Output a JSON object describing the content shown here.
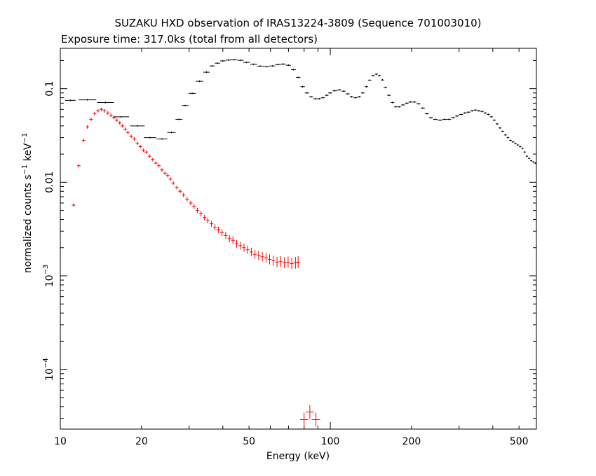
{
  "chart_data": {
    "type": "scatter",
    "title": "SUZAKU HXD observation of IRAS13224-3809 (Sequence 701003010)",
    "subtitle": "Exposure time: 317.0ks (total from all detectors)",
    "xlabel": "Energy (keV)",
    "ylabel_main": "normalized counts s",
    "ylabel_mid": " keV",
    "ylabel_exp": "−1",
    "xscale": "log",
    "yscale": "log",
    "xlim": [
      10,
      580
    ],
    "ylim": [
      2.3e-05,
      0.27
    ],
    "x_ticks": [
      {
        "value": 10,
        "label": "10"
      },
      {
        "value": 20,
        "label": "20"
      },
      {
        "value": 50,
        "label": "50"
      },
      {
        "value": 100,
        "label": "100"
      },
      {
        "value": 200,
        "label": "200"
      },
      {
        "value": 500,
        "label": "500"
      }
    ],
    "y_ticks": [
      {
        "value": 0.0001,
        "base": "10",
        "exp": "−4"
      },
      {
        "value": 0.001,
        "base": "10",
        "exp": "−3"
      },
      {
        "value": 0.01,
        "label": "0.01"
      },
      {
        "value": 0.1,
        "label": "0.1"
      }
    ],
    "series": [
      {
        "color": "#000000",
        "style": "binned",
        "points": [
          [
            10.9,
            0.075
          ],
          [
            12.6,
            0.076
          ],
          [
            14.7,
            0.071
          ],
          [
            16.8,
            0.05
          ],
          [
            19.3,
            0.04
          ],
          [
            21.5,
            0.03
          ],
          [
            23.8,
            0.029
          ],
          [
            25.8,
            0.034
          ],
          [
            27.5,
            0.047
          ],
          [
            29.0,
            0.066
          ],
          [
            30.8,
            0.089
          ],
          [
            32.8,
            0.12
          ],
          [
            34.8,
            0.15
          ],
          [
            36.5,
            0.175
          ],
          [
            38.2,
            0.187
          ],
          [
            40.0,
            0.198
          ],
          [
            42.0,
            0.202
          ],
          [
            44.0,
            0.204
          ],
          [
            46.5,
            0.201
          ],
          [
            49.0,
            0.191
          ],
          [
            52.0,
            0.182
          ],
          [
            55.0,
            0.174
          ],
          [
            58.0,
            0.172
          ],
          [
            61.0,
            0.175
          ],
          [
            64.0,
            0.181
          ],
          [
            67.0,
            0.183
          ],
          [
            70.0,
            0.178
          ],
          [
            73.0,
            0.16
          ],
          [
            76.0,
            0.132
          ],
          [
            79.0,
            0.105
          ],
          [
            82.0,
            0.09
          ],
          [
            85.0,
            0.082
          ],
          [
            88.0,
            0.078
          ],
          [
            91.0,
            0.078
          ],
          [
            94.0,
            0.08
          ],
          [
            97.0,
            0.085
          ],
          [
            100,
            0.09
          ],
          [
            104,
            0.095
          ],
          [
            108,
            0.097
          ],
          [
            112,
            0.094
          ],
          [
            116,
            0.088
          ],
          [
            120,
            0.082
          ],
          [
            124,
            0.08
          ],
          [
            128,
            0.082
          ],
          [
            132,
            0.09
          ],
          [
            136,
            0.105
          ],
          [
            140,
            0.123
          ],
          [
            144,
            0.138
          ],
          [
            148,
            0.143
          ],
          [
            152,
            0.138
          ],
          [
            156,
            0.124
          ],
          [
            160,
            0.103
          ],
          [
            165,
            0.085
          ],
          [
            170,
            0.071
          ],
          [
            175,
            0.064
          ],
          [
            180,
            0.064
          ],
          [
            186,
            0.067
          ],
          [
            192,
            0.07
          ],
          [
            198,
            0.072
          ],
          [
            205,
            0.072
          ],
          [
            212,
            0.069
          ],
          [
            220,
            0.062
          ],
          [
            228,
            0.054
          ],
          [
            236,
            0.049
          ],
          [
            245,
            0.047
          ],
          [
            255,
            0.046
          ],
          [
            265,
            0.047
          ],
          [
            275,
            0.047
          ],
          [
            285,
            0.049
          ],
          [
            295,
            0.051
          ],
          [
            305,
            0.053
          ],
          [
            315,
            0.055
          ],
          [
            325,
            0.056
          ],
          [
            335,
            0.058
          ],
          [
            345,
            0.059
          ],
          [
            355,
            0.058
          ],
          [
            365,
            0.057
          ],
          [
            375,
            0.055
          ],
          [
            385,
            0.053
          ],
          [
            395,
            0.05
          ],
          [
            405,
            0.046
          ],
          [
            415,
            0.042
          ],
          [
            425,
            0.038
          ],
          [
            435,
            0.035
          ],
          [
            445,
            0.032
          ],
          [
            455,
            0.03
          ],
          [
            465,
            0.028
          ],
          [
            475,
            0.027
          ],
          [
            485,
            0.026
          ],
          [
            495,
            0.025
          ],
          [
            505,
            0.024
          ],
          [
            515,
            0.023
          ],
          [
            525,
            0.021
          ],
          [
            535,
            0.019
          ],
          [
            545,
            0.018
          ],
          [
            555,
            0.017
          ],
          [
            565,
            0.0165
          ],
          [
            575,
            0.016
          ]
        ]
      },
      {
        "color": "#ff0000",
        "style": "crosses",
        "points": [
          [
            11.2,
            0.0057
          ],
          [
            11.7,
            0.015
          ],
          [
            12.2,
            0.028
          ],
          [
            12.6,
            0.039
          ],
          [
            13.0,
            0.047
          ],
          [
            13.4,
            0.054
          ],
          [
            13.8,
            0.058
          ],
          [
            14.2,
            0.06
          ],
          [
            14.6,
            0.058
          ],
          [
            15.0,
            0.055
          ],
          [
            15.4,
            0.052
          ],
          [
            15.8,
            0.049
          ],
          [
            16.2,
            0.046
          ],
          [
            16.6,
            0.043
          ],
          [
            17.0,
            0.04
          ],
          [
            17.4,
            0.037
          ],
          [
            17.8,
            0.034
          ],
          [
            18.3,
            0.031
          ],
          [
            18.8,
            0.029
          ],
          [
            19.3,
            0.026
          ],
          [
            19.8,
            0.024
          ],
          [
            20.3,
            0.022
          ],
          [
            20.8,
            0.021
          ],
          [
            21.4,
            0.019
          ],
          [
            22.0,
            0.0175
          ],
          [
            22.6,
            0.016
          ],
          [
            23.2,
            0.015
          ],
          [
            23.8,
            0.0135
          ],
          [
            24.4,
            0.0125
          ],
          [
            25.0,
            0.0118
          ],
          [
            25.6,
            0.0108
          ],
          [
            26.2,
            0.0098
          ],
          [
            27.0,
            0.0088
          ],
          [
            27.8,
            0.008
          ],
          [
            28.6,
            0.0073
          ],
          [
            29.5,
            0.0066
          ],
          [
            30.4,
            0.006
          ],
          [
            31.3,
            0.0055
          ],
          [
            32.2,
            0.005
          ],
          [
            33.2,
            0.0046
          ],
          [
            34.2,
            0.0042
          ],
          [
            35.2,
            0.0039
          ],
          [
            36.3,
            0.0036
          ],
          [
            37.4,
            0.0033
          ],
          [
            38.5,
            0.0031
          ],
          [
            39.7,
            0.0029
          ],
          [
            41.0,
            0.0027
          ],
          [
            42.3,
            0.0025
          ],
          [
            43.6,
            0.0024
          ],
          [
            45.0,
            0.0022
          ],
          [
            46.4,
            0.0021
          ],
          [
            47.9,
            0.002
          ],
          [
            49.4,
            0.0019
          ],
          [
            51.0,
            0.0018
          ],
          [
            52.6,
            0.0017
          ],
          [
            54.3,
            0.00165
          ],
          [
            56.0,
            0.0016
          ],
          [
            57.8,
            0.00155
          ],
          [
            59.6,
            0.0015
          ],
          [
            61.5,
            0.00145
          ],
          [
            63.5,
            0.0014
          ],
          [
            65.5,
            0.00142
          ],
          [
            67.6,
            0.00138
          ],
          [
            69.8,
            0.0014
          ],
          [
            72.0,
            0.00135
          ],
          [
            74.3,
            0.00138
          ],
          [
            76.0,
            0.0014
          ]
        ]
      },
      {
        "color": "#ff0000",
        "style": "big-crosses",
        "points": [
          [
            80.0,
            2.9e-05
          ],
          [
            84.0,
            3.5e-05
          ],
          [
            88.5,
            2.9e-05
          ]
        ]
      }
    ]
  }
}
